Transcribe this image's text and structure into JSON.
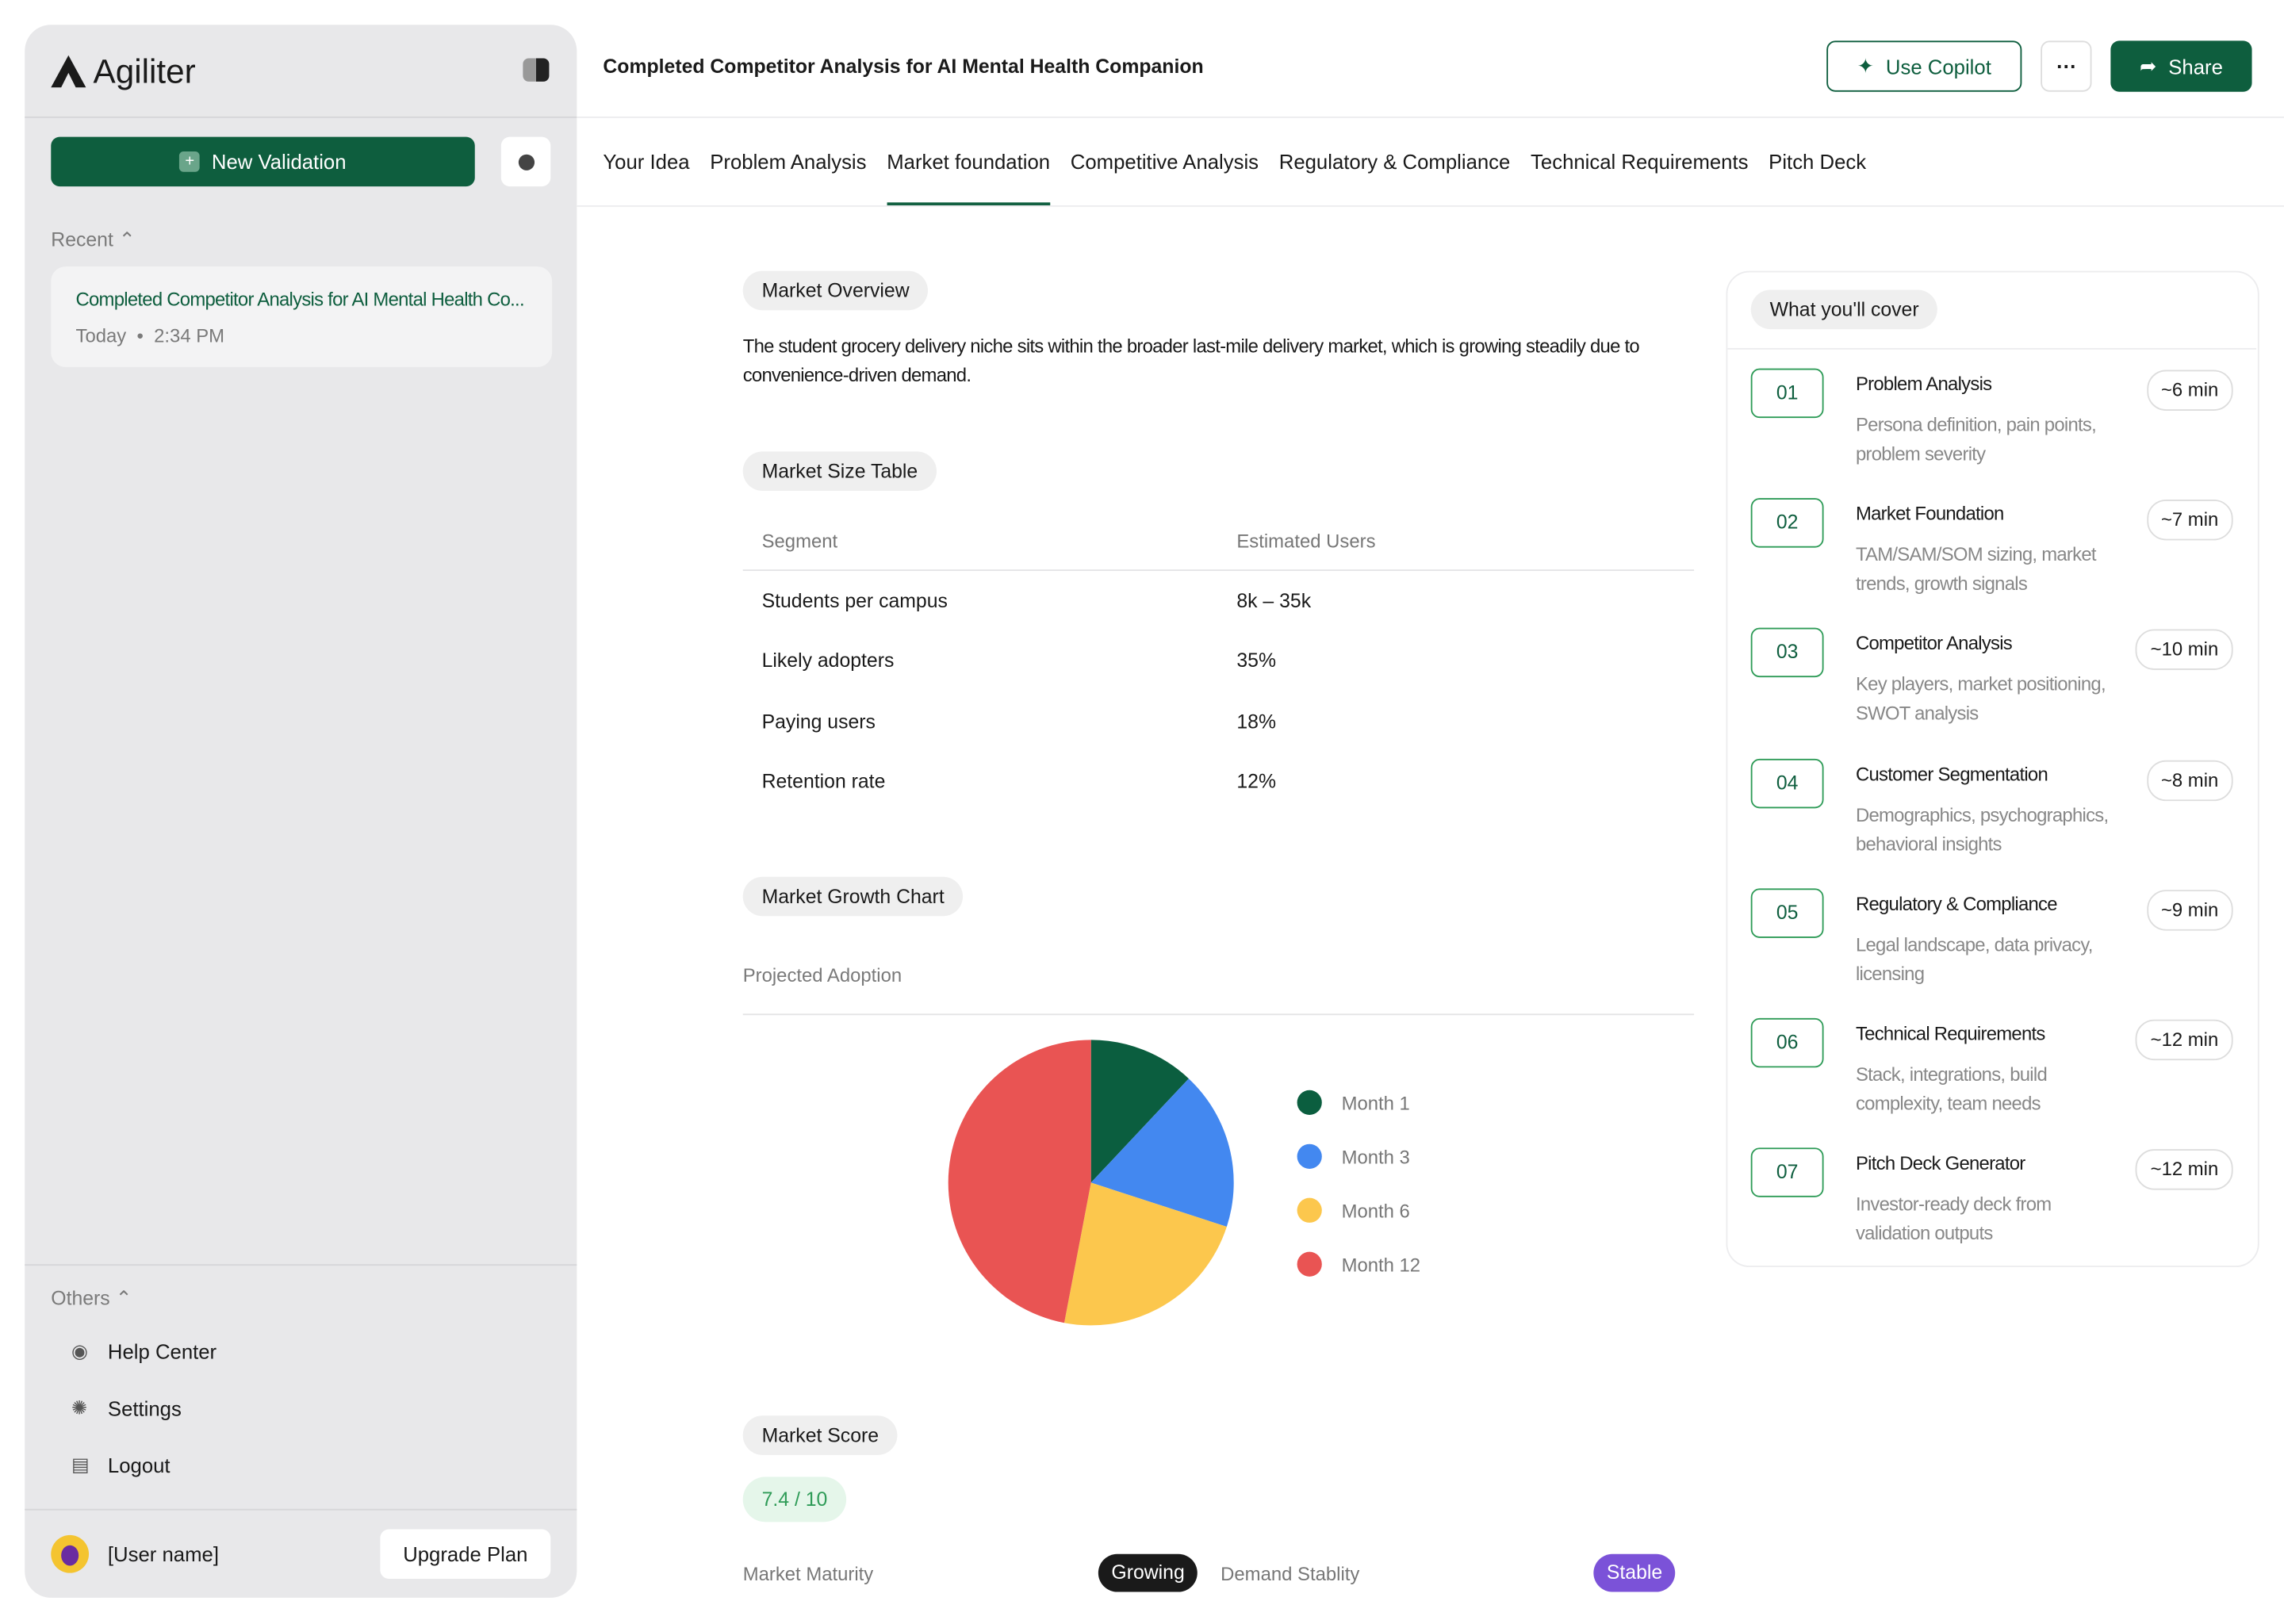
{
  "sidebar": {
    "brand": "Agiliter",
    "new_validation": "New Validation",
    "recent_label": "Recent",
    "recent": [
      {
        "title": "Completed Competitor Analysis for AI Mental Health Co...",
        "date": "Today",
        "time": "2:34 PM"
      }
    ],
    "others_label": "Others",
    "others": [
      "Help Center",
      "Settings",
      "Logout"
    ],
    "user": "[User name]",
    "upgrade": "Upgrade Plan"
  },
  "header": {
    "title": "Completed Competitor Analysis for AI Mental Health Companion",
    "copilot": "Use Copilot",
    "share": "Share"
  },
  "tabs": [
    "Your Idea",
    "Problem Analysis",
    "Market foundation",
    "Competitive Analysis",
    "Regulatory & Compliance",
    "Technical Requirements",
    "Pitch Deck"
  ],
  "active_tab": 2,
  "overview": {
    "label": "Market Overview",
    "text": "The student grocery delivery niche sits within the broader last-mile delivery market, which is growing steadily due to convenience-driven demand."
  },
  "market_size": {
    "label": "Market Size Table",
    "columns": [
      "Segment",
      "Estimated Users"
    ],
    "rows": [
      [
        "Students per campus",
        "8k – 35k"
      ],
      [
        "Likely adopters",
        "35%"
      ],
      [
        "Paying users",
        "18%"
      ],
      [
        "Retention rate",
        "12%"
      ]
    ]
  },
  "growth": {
    "label": "Market Growth Chart"
  },
  "chart_data": {
    "type": "pie",
    "title": "Projected Adoption",
    "categories": [
      "Month 1",
      "Month 3",
      "Month 6",
      "Month 12"
    ],
    "values": [
      12,
      18,
      23,
      47
    ],
    "colors": [
      "#0b5e3f",
      "#4388f0",
      "#fcc74d",
      "#e95453"
    ]
  },
  "score": {
    "label": "Market Score",
    "value": "7.4 / 10",
    "items": [
      {
        "name": "Market Maturity",
        "badge": "Growing",
        "color": "#1a1a1a"
      },
      {
        "name": "Demand Stablity",
        "badge": "Stable",
        "color": "#7b52d8"
      }
    ]
  },
  "cover": {
    "title": "What you'll cover",
    "steps": [
      {
        "num": "01",
        "title": "Problem Analysis",
        "desc": "Persona definition, pain points, problem severity",
        "time": "~6 min"
      },
      {
        "num": "02",
        "title": "Market Foundation",
        "desc": "TAM/SAM/SOM sizing, market trends, growth signals",
        "time": "~7 min"
      },
      {
        "num": "03",
        "title": "Competitor Analysis",
        "desc": "Key players, market positioning, SWOT analysis",
        "time": "~10 min"
      },
      {
        "num": "04",
        "title": "Customer Segmentation",
        "desc": "Demographics, psychographics, behavioral insights",
        "time": "~8 min"
      },
      {
        "num": "05",
        "title": "Regulatory & Compliance",
        "desc": "Legal landscape, data privacy, licensing",
        "time": "~9 min"
      },
      {
        "num": "06",
        "title": "Technical Requirements",
        "desc": "Stack, integrations, build complexity, team needs",
        "time": "~12 min"
      },
      {
        "num": "07",
        "title": "Pitch Deck Generator",
        "desc": "Investor-ready deck from validation outputs",
        "time": "~12 min"
      }
    ]
  }
}
